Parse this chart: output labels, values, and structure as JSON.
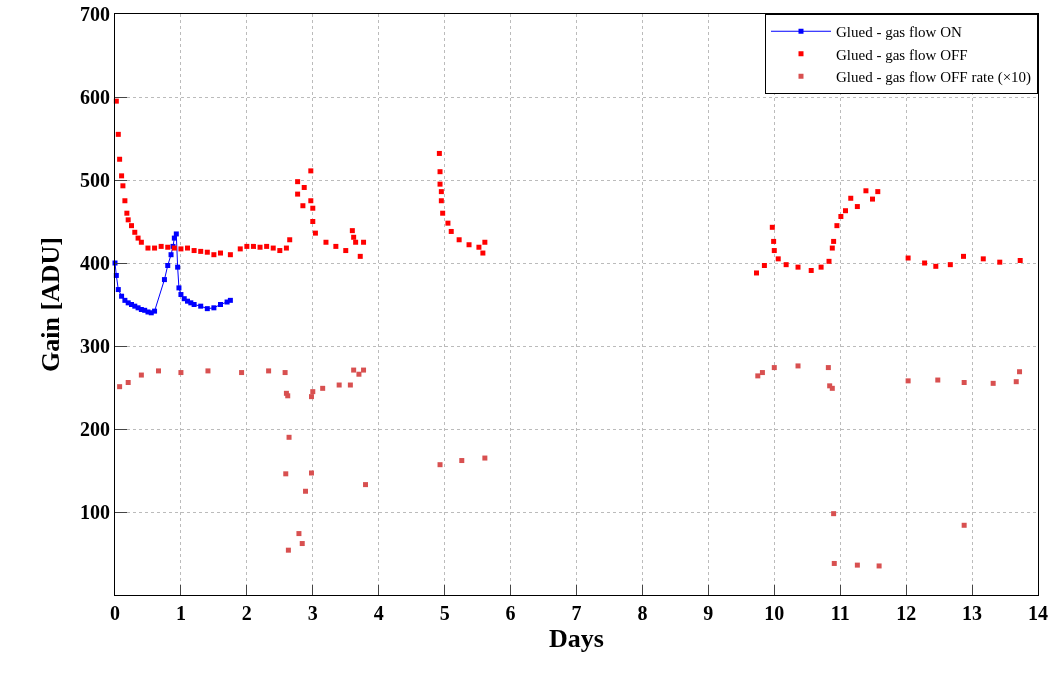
{
  "chart_data": {
    "type": "scatter",
    "xlabel": "Days",
    "ylabel": "Gain [ADU]",
    "xlim": [
      0,
      14
    ],
    "xticks": [
      0,
      1,
      2,
      3,
      4,
      5,
      6,
      7,
      8,
      9,
      10,
      11,
      12,
      13,
      14
    ],
    "ylim": [
      0,
      700
    ],
    "yticks": [
      {
        "value": 0,
        "label": null
      },
      100,
      200,
      300,
      400,
      500,
      600,
      700
    ],
    "grid": true,
    "legend": "top right",
    "marker": "square",
    "series": [
      {
        "name": "Glued - gas flow ON",
        "type": "line",
        "color": "#0000ff",
        "x": [
          0,
          0.02,
          0.05,
          0.1,
          0.15,
          0.2,
          0.25,
          0.3,
          0.35,
          0.4,
          0.45,
          0.5,
          0.55,
          0.6,
          0.75,
          0.8,
          0.85,
          0.88,
          0.9,
          0.93,
          0.95,
          0.97,
          1.0,
          1.05,
          1.1,
          1.15,
          1.2,
          1.3,
          1.4,
          1.5,
          1.6,
          1.7,
          1.75
        ],
        "values": [
          400,
          385,
          368,
          360,
          355,
          352,
          350,
          348,
          346,
          344,
          343,
          341,
          340,
          342,
          380,
          397,
          410,
          420,
          430,
          435,
          395,
          370,
          362,
          357,
          354,
          352,
          350,
          348,
          345,
          346,
          350,
          353,
          355
        ]
      },
      {
        "name": "Glued - gas flow OFF",
        "color": "#ff0000",
        "x": [
          0.02,
          0.05,
          0.07,
          0.1,
          0.12,
          0.15,
          0.18,
          0.2,
          0.25,
          0.3,
          0.35,
          0.4,
          0.5,
          0.6,
          0.7,
          0.8,
          0.9,
          1.0,
          1.1,
          1.2,
          1.3,
          1.4,
          1.5,
          1.6,
          1.75,
          1.9,
          2.0,
          2.1,
          2.2,
          2.3,
          2.4,
          2.5,
          2.6,
          2.65,
          2.77,
          2.77,
          2.87,
          2.85,
          2.97,
          2.97,
          3.0,
          3.0,
          3.04,
          3.2,
          3.35,
          3.5,
          3.6,
          3.62,
          3.65,
          3.72,
          3.77,
          4.92,
          4.93,
          4.93,
          4.95,
          4.95,
          4.97,
          5.05,
          5.1,
          5.22,
          5.37,
          5.52,
          5.58,
          5.61,
          9.73,
          9.85,
          9.97,
          9.99,
          10.0,
          10.06,
          10.18,
          10.36,
          10.56,
          10.71,
          10.83,
          10.88,
          10.9,
          10.95,
          11.01,
          11.08,
          11.16,
          11.26,
          11.39,
          11.49,
          11.57,
          12.03,
          12.28,
          12.45,
          12.67,
          12.87,
          13.17,
          13.42,
          13.73
        ],
        "values": [
          595,
          555,
          525,
          505,
          493,
          475,
          460,
          452,
          445,
          437,
          430,
          425,
          418,
          418,
          420,
          419,
          418,
          417,
          418,
          415,
          414,
          413,
          410,
          412,
          410,
          417,
          420,
          420,
          419,
          420,
          418,
          415,
          418,
          428,
          498,
          483,
          491,
          469,
          511,
          475,
          466,
          450,
          436,
          425,
          420,
          415,
          439,
          431,
          425,
          408,
          425,
          532,
          510,
          495,
          486,
          475,
          460,
          448,
          438,
          428,
          422,
          419,
          412,
          425,
          388,
          397,
          443,
          426,
          415,
          405,
          398,
          395,
          391,
          395,
          402,
          418,
          426,
          445,
          456,
          463,
          478,
          468,
          487,
          477,
          486,
          406,
          400,
          396,
          398,
          408,
          405,
          401,
          403
        ]
      },
      {
        "name": "Glued - gas flow OFF rate (×10)",
        "color": "#d85050",
        "x": [
          0.07,
          0.2,
          0.4,
          0.66,
          1.0,
          1.41,
          1.92,
          2.33,
          2.58,
          2.6,
          2.62,
          2.64,
          2.59,
          2.63,
          2.79,
          2.84,
          2.89,
          2.98,
          2.98,
          3.0,
          3.15,
          3.4,
          3.57,
          3.62,
          3.7,
          3.77,
          3.8,
          4.93,
          5.26,
          5.61,
          9.75,
          9.82,
          10.0,
          10.36,
          10.82,
          10.84,
          10.88,
          10.9,
          10.91,
          11.26,
          11.59,
          12.03,
          12.48,
          12.88,
          12.88,
          13.32,
          13.67,
          13.72
        ],
        "values": [
          251,
          256,
          265,
          270,
          268,
          270,
          268,
          270,
          268,
          243,
          240,
          190,
          146,
          54,
          74,
          62,
          125,
          147,
          239,
          245,
          249,
          253,
          253,
          271,
          266,
          271,
          133,
          157,
          162,
          165,
          264,
          268,
          274,
          276,
          274,
          252,
          249,
          98,
          38,
          36,
          35,
          258,
          259,
          256,
          84,
          255,
          257,
          269
        ]
      }
    ]
  }
}
